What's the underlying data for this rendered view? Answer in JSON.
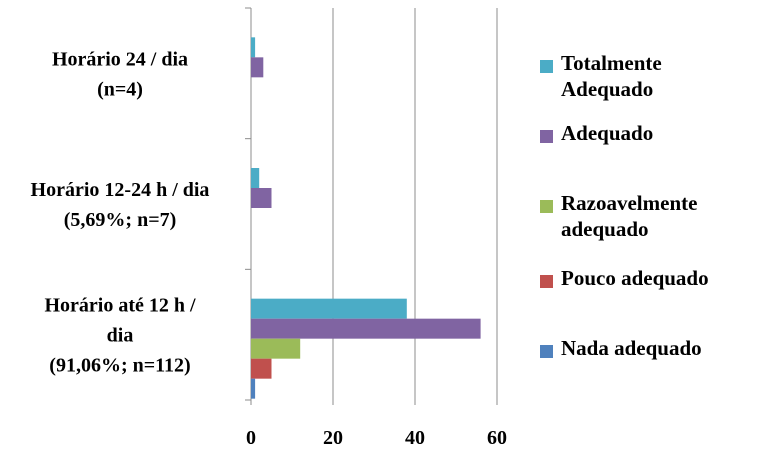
{
  "chart_data": {
    "type": "bar",
    "orientation": "horizontal",
    "categories": [
      [
        "Horário 24 / dia",
        "(n=4)"
      ],
      [
        "Horário 12-24 h / dia",
        "(5,69%; n=7)"
      ],
      [
        "Horário até 12 h /",
        "dia",
        "(91,06%; n=112)"
      ]
    ],
    "series": [
      {
        "name": "Totalmente Adequado",
        "color": "#4bacc6",
        "values": [
          1,
          2,
          38
        ]
      },
      {
        "name": "Adequado",
        "color": "#8064a2",
        "values": [
          3,
          5,
          56
        ]
      },
      {
        "name": "Razoavelmente adequado",
        "color": "#9bbb59",
        "values": [
          0,
          0,
          12
        ]
      },
      {
        "name": "Pouco adequado",
        "color": "#c0504d",
        "values": [
          0,
          0,
          5
        ]
      },
      {
        "name": "Nada adequado",
        "color": "#4f81bd",
        "values": [
          0,
          0,
          1
        ]
      }
    ],
    "xlim": [
      0,
      60
    ],
    "xticks": [
      0,
      20,
      40,
      60
    ],
    "grid": true,
    "legend": "right"
  }
}
